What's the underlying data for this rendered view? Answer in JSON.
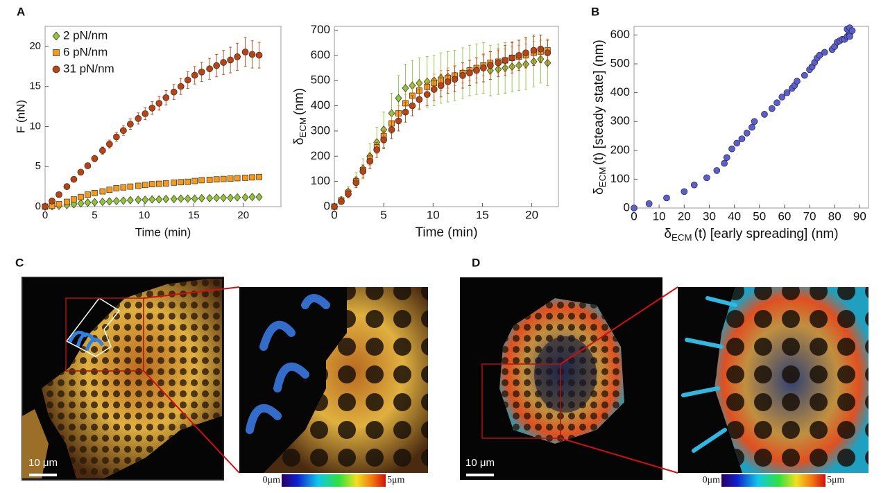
{
  "chart_data": [
    {
      "type": "line",
      "xlabel": "Time (min)",
      "ylabel": "F (nN)",
      "xlim": [
        0,
        23.8
      ],
      "ylim": [
        0,
        22.5
      ],
      "xticks": [
        0,
        5,
        10,
        15,
        20
      ],
      "yticks": [
        0,
        5,
        10,
        15,
        20
      ],
      "legend": "upper left",
      "x": [
        0,
        0.7,
        1.4,
        2.2,
        2.9,
        3.6,
        4.3,
        5.0,
        5.8,
        6.5,
        7.2,
        7.9,
        8.6,
        9.4,
        10.1,
        10.8,
        11.5,
        12.2,
        13.0,
        13.7,
        14.4,
        15.1,
        15.8,
        16.6,
        17.3,
        18.0,
        18.7,
        19.4,
        20.2,
        20.9,
        21.6
      ],
      "series": [
        {
          "name": "2 pN/nm",
          "color": "#8cc63f",
          "marker": "diamond",
          "values": [
            0,
            0.05,
            0.1,
            0.2,
            0.3,
            0.4,
            0.5,
            0.55,
            0.6,
            0.65,
            0.7,
            0.75,
            0.8,
            0.85,
            0.85,
            0.9,
            0.9,
            0.95,
            0.95,
            1.0,
            1.0,
            1.0,
            1.05,
            1.05,
            1.1,
            1.1,
            1.1,
            1.15,
            1.15,
            1.2,
            1.2
          ],
          "errors": [
            0,
            0.06,
            0.06,
            0.06,
            0.06,
            0.06,
            0.06,
            0.06,
            0.06,
            0.06,
            0.06,
            0.06,
            0.06,
            0.06,
            0.06,
            0.06,
            0.06,
            0.06,
            0.06,
            0.06,
            0.06,
            0.06,
            0.06,
            0.06,
            0.06,
            0.06,
            0.06,
            0.06,
            0.06,
            0.06,
            0.06
          ]
        },
        {
          "name": "6 pN/nm",
          "color": "#f39a1f",
          "marker": "square",
          "values": [
            0,
            0.1,
            0.3,
            0.6,
            0.9,
            1.2,
            1.5,
            1.7,
            1.9,
            2.1,
            2.3,
            2.4,
            2.5,
            2.6,
            2.7,
            2.8,
            2.85,
            2.9,
            3.0,
            3.05,
            3.1,
            3.2,
            3.3,
            3.35,
            3.4,
            3.45,
            3.5,
            3.55,
            3.6,
            3.65,
            3.7
          ],
          "errors": [
            0,
            0.12,
            0.12,
            0.12,
            0.12,
            0.12,
            0.12,
            0.12,
            0.12,
            0.12,
            0.12,
            0.12,
            0.12,
            0.12,
            0.12,
            0.12,
            0.12,
            0.12,
            0.12,
            0.12,
            0.12,
            0.12,
            0.12,
            0.12,
            0.12,
            0.12,
            0.12,
            0.12,
            0.12,
            0.12,
            0.12
          ]
        },
        {
          "name": "31 pN/nm",
          "color": "#b5441a",
          "marker": "circle",
          "values": [
            0,
            0.7,
            1.5,
            2.5,
            3.4,
            4.3,
            5.1,
            6.0,
            7.0,
            7.8,
            8.7,
            9.5,
            10.3,
            11.0,
            11.6,
            12.3,
            12.9,
            13.6,
            14.3,
            15.0,
            15.8,
            16.4,
            16.8,
            17.2,
            17.6,
            18.0,
            18.3,
            18.7,
            19.3,
            19.0,
            18.9
          ],
          "errors": [
            0,
            0.1,
            0.15,
            0.2,
            0.25,
            0.3,
            0.35,
            0.4,
            0.45,
            0.5,
            0.55,
            0.6,
            0.65,
            0.7,
            0.75,
            0.8,
            0.85,
            0.9,
            0.95,
            1.0,
            1.05,
            1.1,
            1.2,
            1.3,
            1.4,
            1.5,
            1.6,
            1.7,
            1.8,
            1.7,
            1.6
          ]
        }
      ]
    },
    {
      "type": "line",
      "xlabel": "Time (min)",
      "ylabel": {
        "text": "δ",
        "sub": "ECM",
        "tail": "(nm)"
      },
      "xlim": [
        0,
        22.7
      ],
      "ylim": [
        0,
        715
      ],
      "xticks": [
        0,
        5,
        10,
        15,
        20
      ],
      "yticks": [
        0,
        100,
        200,
        300,
        400,
        500,
        600,
        700
      ],
      "x": [
        0,
        0.7,
        1.4,
        2.2,
        2.9,
        3.6,
        4.3,
        5.0,
        5.8,
        6.5,
        7.2,
        7.9,
        8.6,
        9.4,
        10.1,
        10.8,
        11.5,
        12.2,
        13.0,
        13.7,
        14.4,
        15.1,
        15.8,
        16.6,
        17.3,
        18.0,
        18.7,
        19.4,
        20.2,
        20.9,
        21.6
      ],
      "series": [
        {
          "color": "#8cc63f",
          "marker": "diamond",
          "values": [
            0,
            25,
            60,
            105,
            150,
            200,
            255,
            305,
            370,
            430,
            470,
            480,
            490,
            495,
            500,
            510,
            515,
            520,
            530,
            540,
            545,
            550,
            540,
            545,
            550,
            555,
            560,
            565,
            575,
            585,
            570
          ],
          "errors": [
            0,
            15,
            20,
            30,
            40,
            50,
            60,
            70,
            80,
            90,
            95,
            100,
            100,
            100,
            100,
            100,
            100,
            100,
            100,
            100,
            100,
            100,
            100,
            100,
            100,
            100,
            100,
            100,
            100,
            95,
            90
          ]
        },
        {
          "color": "#f39a1f",
          "marker": "square",
          "values": [
            0,
            25,
            55,
            100,
            145,
            190,
            235,
            280,
            330,
            370,
            410,
            440,
            460,
            475,
            490,
            500,
            510,
            520,
            530,
            540,
            550,
            560,
            570,
            575,
            580,
            590,
            595,
            600,
            610,
            615,
            620
          ],
          "errors": [
            0,
            10,
            15,
            20,
            20,
            25,
            25,
            30,
            30,
            30,
            35,
            35,
            35,
            35,
            35,
            40,
            40,
            40,
            40,
            40,
            40,
            40,
            45,
            45,
            45,
            45,
            45,
            45,
            45,
            45,
            45
          ]
        },
        {
          "color": "#b5441a",
          "marker": "circle",
          "values": [
            0,
            20,
            50,
            95,
            140,
            180,
            225,
            265,
            305,
            340,
            375,
            400,
            425,
            445,
            465,
            480,
            495,
            505,
            520,
            530,
            540,
            550,
            560,
            570,
            580,
            590,
            600,
            610,
            620,
            625,
            610
          ],
          "errors": [
            0,
            10,
            15,
            20,
            25,
            30,
            30,
            35,
            35,
            40,
            40,
            40,
            40,
            45,
            45,
            45,
            45,
            50,
            50,
            50,
            50,
            55,
            55,
            55,
            60,
            60,
            60,
            60,
            60,
            55,
            50
          ]
        }
      ]
    },
    {
      "type": "scatter",
      "color": "#5b5fc7",
      "xlabel": {
        "text": "δ",
        "sub": "ECM",
        "tail": "(t) [early spreading]   (nm)"
      },
      "ylabel": {
        "text": "δ",
        "sub": "ECM",
        "tail": "(t) [steady state]   (nm)"
      },
      "xlim": [
        0,
        93.5
      ],
      "ylim": [
        0,
        630
      ],
      "xticks": [
        0,
        10,
        20,
        30,
        40,
        50,
        60,
        70,
        80,
        90
      ],
      "yticks": [
        0,
        100,
        200,
        300,
        400,
        500,
        600
      ],
      "x": [
        0,
        6,
        13,
        20,
        24,
        29,
        33,
        36,
        37,
        39,
        41,
        43,
        45,
        47,
        48,
        52,
        55,
        57,
        59,
        61,
        63,
        64,
        65,
        68,
        70,
        71,
        72,
        73,
        74,
        76,
        79,
        80,
        81,
        82,
        83,
        84,
        85,
        86,
        86,
        85,
        86,
        87,
        86
      ],
      "values": [
        0,
        15,
        35,
        57,
        80,
        105,
        130,
        155,
        175,
        205,
        225,
        240,
        260,
        280,
        300,
        325,
        345,
        365,
        385,
        400,
        415,
        425,
        440,
        460,
        480,
        490,
        505,
        520,
        530,
        540,
        550,
        560,
        575,
        580,
        585,
        585,
        595,
        600,
        610,
        620,
        625,
        615,
        595
      ]
    }
  ],
  "figure": {
    "panel_labels": [
      "A",
      "B",
      "C",
      "D"
    ],
    "scale_bars": [
      "10 μm",
      "10 μm"
    ],
    "colorbars": [
      {
        "min": "0μm",
        "max": "5μm"
      },
      {
        "min": "0μm",
        "max": "5μm"
      }
    ]
  }
}
